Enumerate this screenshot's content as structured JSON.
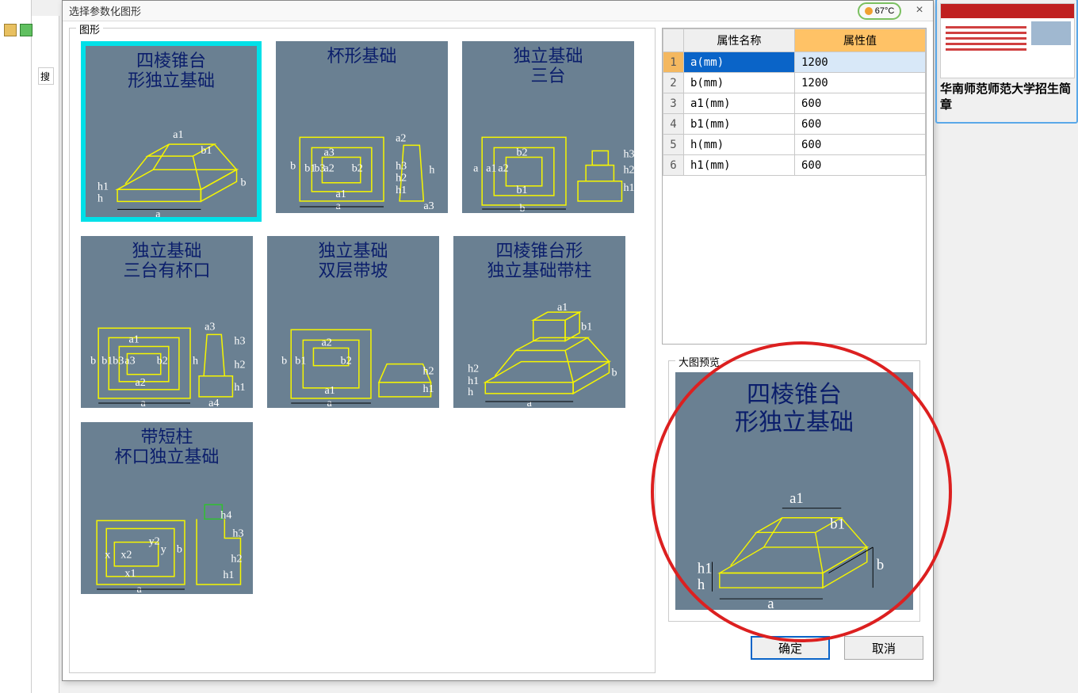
{
  "window": {
    "title": "选择参数化图形",
    "close_icon": "×",
    "temp": "67°C"
  },
  "search_stub": "搜",
  "shapes_legend": "图形",
  "shapes": [
    {
      "title": "四棱锥台\n形独立基础",
      "selected": true
    },
    {
      "title": "杯形基础",
      "selected": false
    },
    {
      "title": "独立基础\n三台",
      "selected": false
    },
    {
      "title": "独立基础\n三台有杯口",
      "selected": false
    },
    {
      "title": "独立基础\n双层带坡",
      "selected": false
    },
    {
      "title": "四棱锥台形\n独立基础带柱",
      "selected": false
    },
    {
      "title": "带短柱\n杯口独立基础",
      "selected": false
    }
  ],
  "table": {
    "col_name": "属性名称",
    "col_value": "属性值",
    "rows": [
      {
        "n": "1",
        "name": "a(mm)",
        "value": "1200",
        "selected": true
      },
      {
        "n": "2",
        "name": "b(mm)",
        "value": "1200",
        "selected": false
      },
      {
        "n": "3",
        "name": "a1(mm)",
        "value": "600",
        "selected": false
      },
      {
        "n": "4",
        "name": "b1(mm)",
        "value": "600",
        "selected": false
      },
      {
        "n": "5",
        "name": "h(mm)",
        "value": "600",
        "selected": false
      },
      {
        "n": "6",
        "name": "h1(mm)",
        "value": "600",
        "selected": false
      }
    ]
  },
  "preview_legend": "大图预览",
  "preview_title": "四棱锥台\n形独立基础",
  "buttons": {
    "ok": "确定",
    "cancel": "取消"
  },
  "side_caption": "华南师范师范大学招生简章"
}
